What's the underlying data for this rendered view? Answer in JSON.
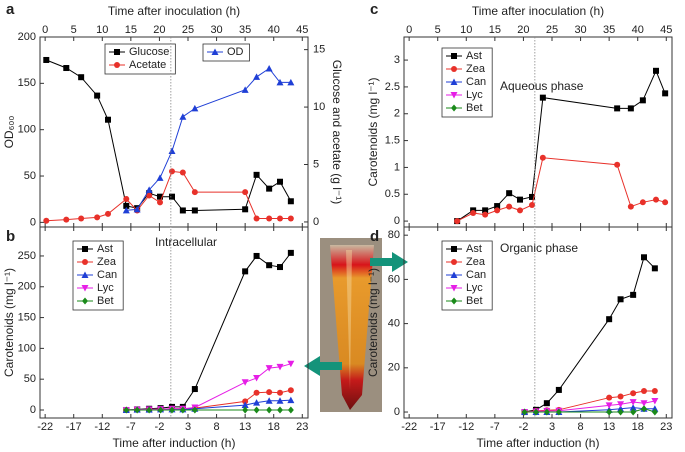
{
  "chart_data": [
    {
      "type": "line",
      "label": "a",
      "x_label": "Time after inoculation (h)",
      "xaxis": "top",
      "y_label": "OD₆₀₀",
      "y2_label": "Glucose and acetate (g l⁻¹)",
      "xlim": [
        -0.9,
        46
      ],
      "xticks": [
        0,
        5,
        10,
        15,
        20,
        25,
        30,
        35,
        40,
        45
      ],
      "ylim": [
        -5,
        200
      ],
      "yticks": [
        0,
        50,
        100,
        150,
        200
      ],
      "y2lim": [
        -0.44,
        16.1
      ],
      "y2ticks": [
        0,
        5,
        10,
        15
      ],
      "x": [
        0.2,
        3.7,
        6.3,
        9.1,
        11,
        14.2,
        16.1,
        18.2,
        20.1,
        22.2,
        24.1,
        26.2,
        35,
        37,
        39.2,
        41.1,
        43
      ],
      "series": [
        {
          "name": "Glucose",
          "color": "#000000",
          "marker": "square",
          "axis": "y2",
          "values": [
            14.1,
            13.4,
            12.6,
            11.0,
            8.9,
            1.4,
            1.2,
            2.5,
            2.2,
            2.2,
            1.0,
            1.0,
            1.1,
            4.1,
            2.9,
            3.5,
            1.8
          ]
        },
        {
          "name": "Acetate",
          "color": "#e8312a",
          "marker": "circle",
          "axis": "y2",
          "values": [
            0.1,
            0.2,
            0.3,
            0.4,
            0.7,
            2.0,
            1.0,
            2.3,
            1.7,
            4.4,
            4.3,
            2.6,
            2.6,
            0.3,
            0.3,
            0.3,
            0.3
          ]
        },
        {
          "name": "OD",
          "color": "#1f3fd6",
          "marker": "triangle",
          "axis": "y",
          "x": [
            14.2,
            16.1,
            18.2,
            20.1,
            22.2,
            24.1,
            26.2,
            35,
            37,
            39.2,
            41.1,
            43
          ],
          "values": [
            13,
            14,
            35,
            48,
            77,
            114,
            123,
            143,
            157,
            166,
            151,
            151
          ]
        }
      ]
    },
    {
      "type": "line",
      "label": "b",
      "x_label": "Time after induction (h)",
      "xaxis": "bottom",
      "y_label": "Carotenoids (mg l⁻¹)",
      "annotation": "Intracellular",
      "xlim": [
        -22.9,
        24
      ],
      "xticks": [
        -22,
        -17,
        -12,
        -7,
        -2,
        3,
        8,
        13,
        18,
        23
      ],
      "ylim": [
        -13,
        297
      ],
      "yticks": [
        0,
        50,
        100,
        150,
        200,
        250
      ],
      "x": [
        -7.8,
        -5.9,
        -3.8,
        -1.8,
        0.2,
        2.1,
        4.2,
        13,
        15,
        17.2,
        19.1,
        21
      ],
      "series": [
        {
          "name": "Ast",
          "color": "#000000",
          "marker": "square",
          "values": [
            0,
            1,
            2,
            3,
            5,
            5,
            34,
            225,
            250,
            235,
            232,
            255
          ]
        },
        {
          "name": "Zea",
          "color": "#e8312a",
          "marker": "circle",
          "values": [
            0,
            0.5,
            1,
            1.5,
            2,
            2,
            3,
            14,
            28,
            29,
            28,
            32
          ]
        },
        {
          "name": "Can",
          "color": "#1f3fd6",
          "marker": "triangle",
          "values": [
            0,
            0.5,
            0.5,
            1,
            1,
            1,
            2,
            8,
            12,
            15,
            15,
            16
          ]
        },
        {
          "name": "Lyc",
          "color": "#e61ee6",
          "marker": "triangle-down",
          "values": [
            0,
            0.5,
            1,
            1.5,
            2,
            2,
            4,
            45,
            52,
            68,
            70,
            75
          ]
        },
        {
          "name": "Bet",
          "color": "#1a8a1a",
          "marker": "diamond",
          "values": [
            0,
            0,
            0,
            0,
            0,
            0,
            0,
            0,
            0,
            0,
            0,
            0
          ]
        }
      ]
    },
    {
      "type": "line",
      "label": "c",
      "x_label": "Time after inoculation (h)",
      "xaxis": "top",
      "y_label": "Carotenoids (mg l⁻¹)",
      "annotation": "Aqueous phase",
      "xlim": [
        -0.9,
        46
      ],
      "xticks": [
        0,
        5,
        10,
        15,
        20,
        25,
        30,
        35,
        40,
        45
      ],
      "ylim": [
        -0.11,
        3.43
      ],
      "yticks": [
        0,
        0.5,
        1,
        1.5,
        2,
        2.5,
        3
      ],
      "x": [
        8.4,
        11.2,
        13.3,
        15.4,
        17.5,
        19.4,
        21.5,
        23.4,
        36.4,
        38.8,
        40.9,
        43.2,
        44.8
      ],
      "series": [
        {
          "name": "Ast",
          "color": "#000000",
          "marker": "square",
          "values": [
            0,
            0.2,
            0.2,
            0.28,
            0.52,
            0.4,
            0.45,
            2.3,
            2.1,
            2.1,
            2.25,
            2.8,
            2.38
          ]
        },
        {
          "name": "Zea",
          "color": "#e8312a",
          "marker": "circle",
          "values": [
            0,
            0.15,
            0.12,
            0.2,
            0.27,
            0.2,
            0.3,
            1.18,
            1.05,
            0.27,
            0.35,
            0.4,
            0.35
          ]
        },
        {
          "name": "Can",
          "color": "#1f3fd6",
          "marker": "triangle",
          "values": [
            null,
            null,
            null,
            null,
            null,
            null,
            null,
            null,
            null,
            null,
            null,
            null,
            null
          ]
        },
        {
          "name": "Lyc",
          "color": "#e61ee6",
          "marker": "triangle-down",
          "values": [
            null,
            null,
            null,
            null,
            null,
            null,
            null,
            null,
            null,
            null,
            null,
            null,
            null
          ]
        },
        {
          "name": "Bet",
          "color": "#1a8a1a",
          "marker": "diamond",
          "values": [
            null,
            null,
            null,
            null,
            null,
            null,
            null,
            null,
            null,
            null,
            null,
            null,
            null
          ]
        }
      ]
    },
    {
      "type": "line",
      "label": "d",
      "x_label": "Time after induction (h)",
      "xaxis": "bottom",
      "y_label": "Carotenoids (mg l⁻¹)",
      "annotation": "Organic phase",
      "xlim": [
        -22.9,
        24
      ],
      "xticks": [
        -22,
        -17,
        -12,
        -7,
        -2,
        3,
        8,
        13,
        18,
        23
      ],
      "ylim": [
        -2.7,
        83.7
      ],
      "yticks": [
        0,
        20,
        40,
        60,
        80
      ],
      "x": [
        -1.8,
        0.2,
        2.1,
        4.2,
        13,
        15,
        17.2,
        19.1,
        21
      ],
      "series": [
        {
          "name": "Ast",
          "color": "#000000",
          "marker": "square",
          "values": [
            0,
            1,
            4,
            10,
            42,
            51,
            53,
            70,
            65
          ]
        },
        {
          "name": "Zea",
          "color": "#e8312a",
          "marker": "circle",
          "values": [
            0,
            0.5,
            0.8,
            1,
            6.5,
            7,
            8.5,
            9.5,
            9.5
          ]
        },
        {
          "name": "Can",
          "color": "#1f3fd6",
          "marker": "triangle",
          "values": [
            0,
            0,
            0,
            0,
            1,
            1.5,
            2,
            1.5,
            1.5
          ]
        },
        {
          "name": "Lyc",
          "color": "#e61ee6",
          "marker": "triangle-down",
          "values": [
            0,
            0.3,
            0.5,
            0.6,
            3,
            3.5,
            4.5,
            4,
            5
          ]
        },
        {
          "name": "Bet",
          "color": "#1a8a1a",
          "marker": "diamond",
          "values": [
            0,
            0,
            0,
            0,
            0,
            0,
            0,
            1.5,
            0
          ]
        }
      ]
    }
  ]
}
